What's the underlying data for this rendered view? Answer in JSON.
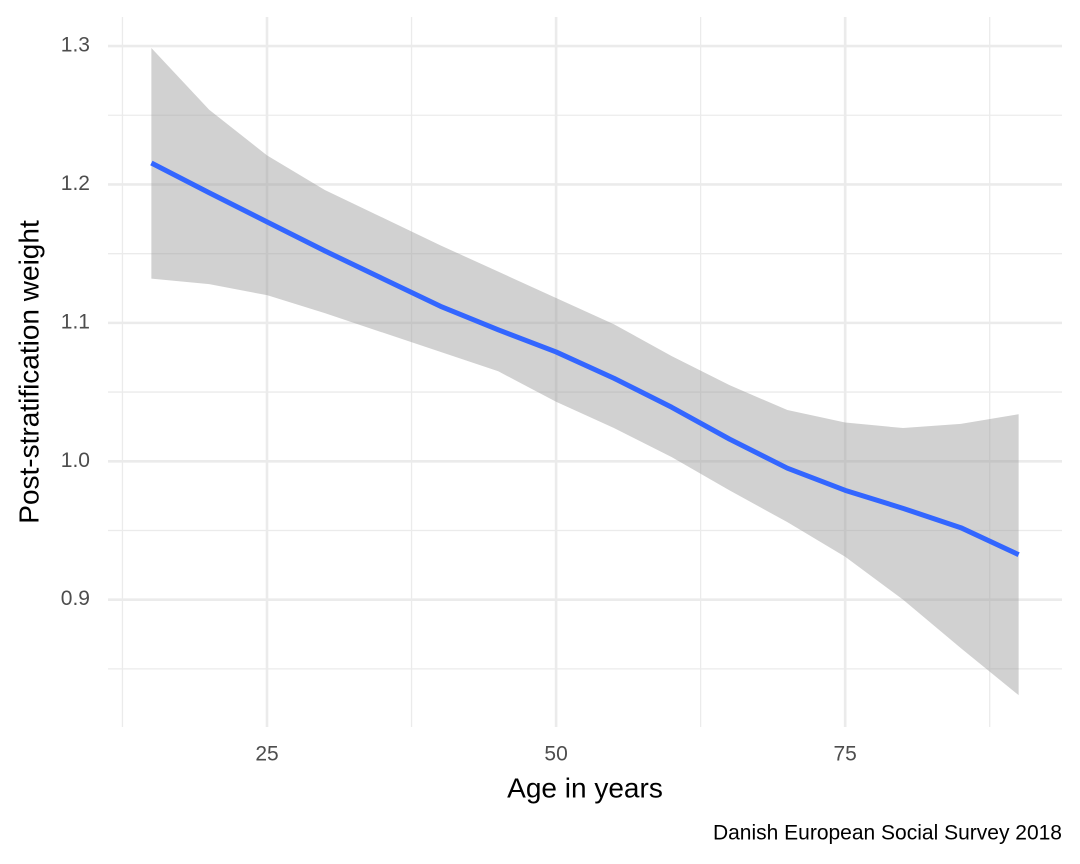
{
  "chart_data": {
    "type": "smooth",
    "x_label": "Age in years",
    "y_label": "Post-stratification weight",
    "caption": "Danish European Social Survey 2018",
    "x": [
      15,
      20,
      25,
      30,
      35,
      40,
      45,
      50,
      55,
      60,
      65,
      70,
      75,
      80,
      85,
      90
    ],
    "values": [
      1.2155,
      1.194,
      1.173,
      1.152,
      1.132,
      1.112,
      1.095,
      1.079,
      1.06,
      1.039,
      1.016,
      0.995,
      0.979,
      0.966,
      0.952,
      0.9325
    ],
    "upper": [
      1.2986,
      1.254,
      1.221,
      1.196,
      1.176,
      1.156,
      1.137,
      1.118,
      1.099,
      1.076,
      1.055,
      1.037,
      1.028,
      1.024,
      1.027,
      1.034
    ],
    "lower": [
      1.132,
      1.128,
      1.12,
      1.107,
      1.093,
      1.079,
      1.065,
      1.043,
      1.024,
      1.003,
      0.979,
      0.956,
      0.931,
      0.9,
      0.865,
      0.831
    ],
    "color": "#3366ff",
    "band_color": "#999999",
    "band_opacity": 0.45,
    "xlim": [
      11.25,
      93.75
    ],
    "ylim": [
      0.808,
      1.321
    ],
    "xticks": [
      25,
      50,
      75
    ],
    "yticks": [
      0.9,
      {
        "value": 1,
        "label": "1.0"
      },
      1.1,
      1.2,
      1.3
    ],
    "x_minor_breaks": [
      12.5,
      37.5,
      62.5,
      87.5
    ],
    "y_minor_breaks": [
      0.85,
      0.95,
      1.05,
      1.15,
      1.25
    ],
    "grid": true
  }
}
